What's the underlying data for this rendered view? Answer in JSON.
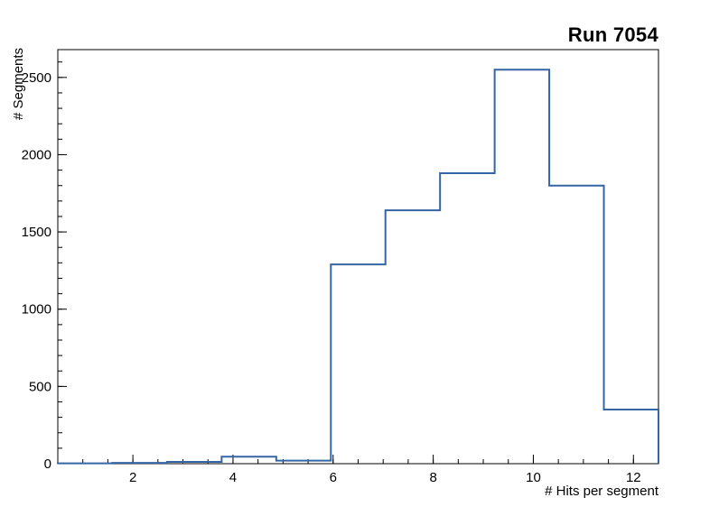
{
  "chart_data": {
    "type": "bar",
    "subtype": "step-histogram",
    "title": "Run 7054",
    "xlabel": "# Hits per segment",
    "ylabel": "# Segments",
    "xlim": [
      0.5,
      12.5
    ],
    "ylim": [
      0,
      2680
    ],
    "xticks": [
      2,
      4,
      6,
      8,
      10,
      12
    ],
    "yticks": [
      0,
      500,
      1000,
      1500,
      2000,
      2500
    ],
    "x_minor_step": 0.5,
    "y_minor_step": 100,
    "grid": false,
    "legend": "none",
    "line_color": "#3465a4",
    "axis_color": "#000000",
    "bin_edges": [
      0.5,
      1.591,
      2.682,
      3.773,
      4.864,
      5.955,
      7.045,
      8.136,
      9.227,
      10.318,
      11.409,
      12.5
    ],
    "counts": [
      2,
      5,
      12,
      45,
      20,
      1290,
      1640,
      1880,
      2550,
      1800,
      350
    ]
  }
}
